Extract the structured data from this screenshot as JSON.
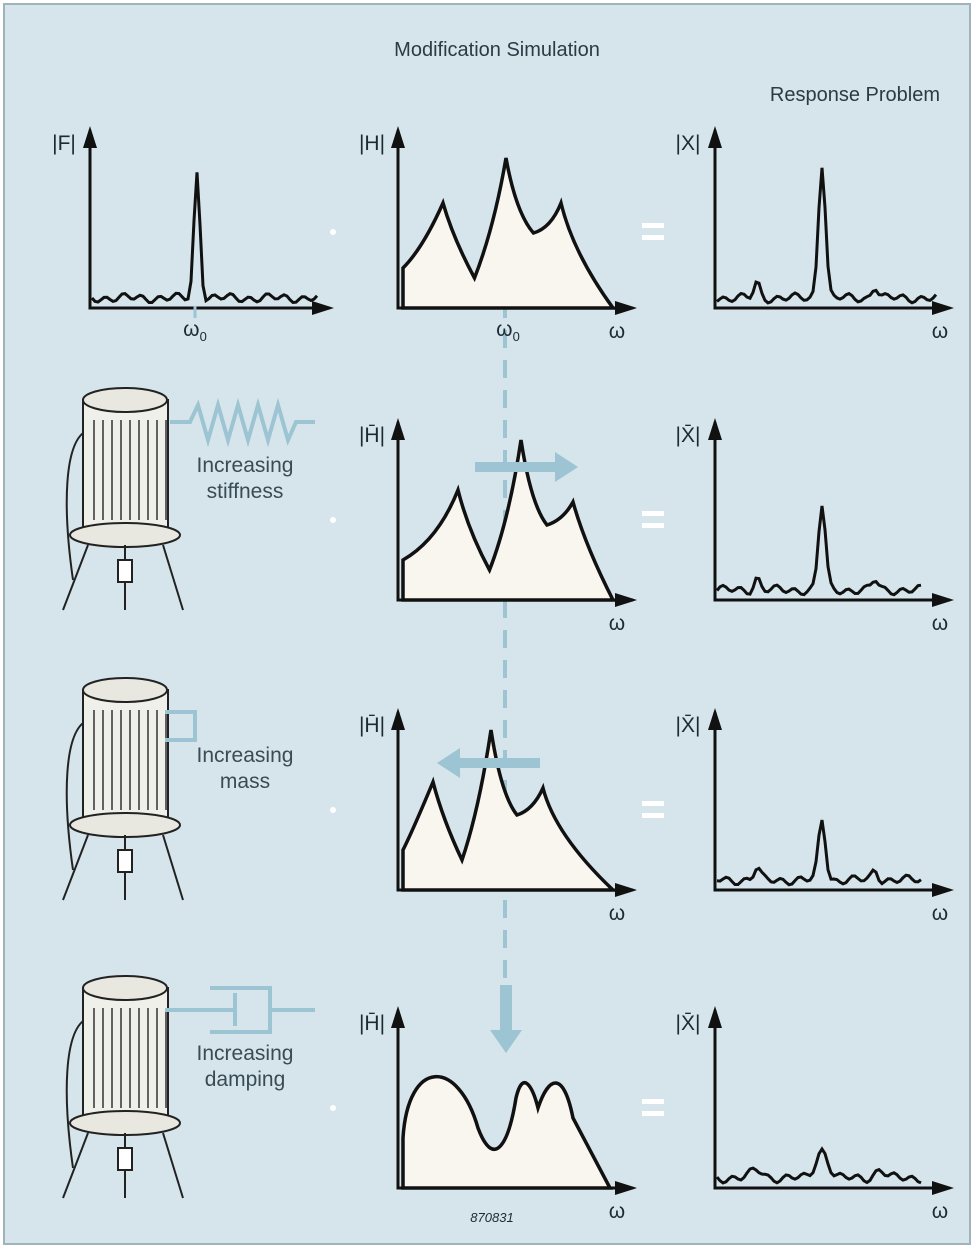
{
  "header": {
    "title": "Modification Simulation",
    "subtitle": "Response Problem"
  },
  "baseline": {
    "force_label": "|F|",
    "frf_label": "|H|",
    "response_label": "|X|",
    "excitation": {
      "symbol": "ω",
      "subscript": "0"
    },
    "frequency_label": "ω"
  },
  "modifications": [
    {
      "line1": "Increasing",
      "line2": "stiffness",
      "frf_label": "|H̄|",
      "response_label": "|X̄|",
      "frequency_label": "ω"
    },
    {
      "line1": "Increasing",
      "line2": "mass",
      "frf_label": "|H̄|",
      "response_label": "|X̄|",
      "frequency_label": "ω"
    },
    {
      "line1": "Increasing",
      "line2": "damping",
      "frf_label": "|H̄|",
      "response_label": "|X̄|",
      "frequency_label": "ω"
    }
  ],
  "figure_number": "870831"
}
